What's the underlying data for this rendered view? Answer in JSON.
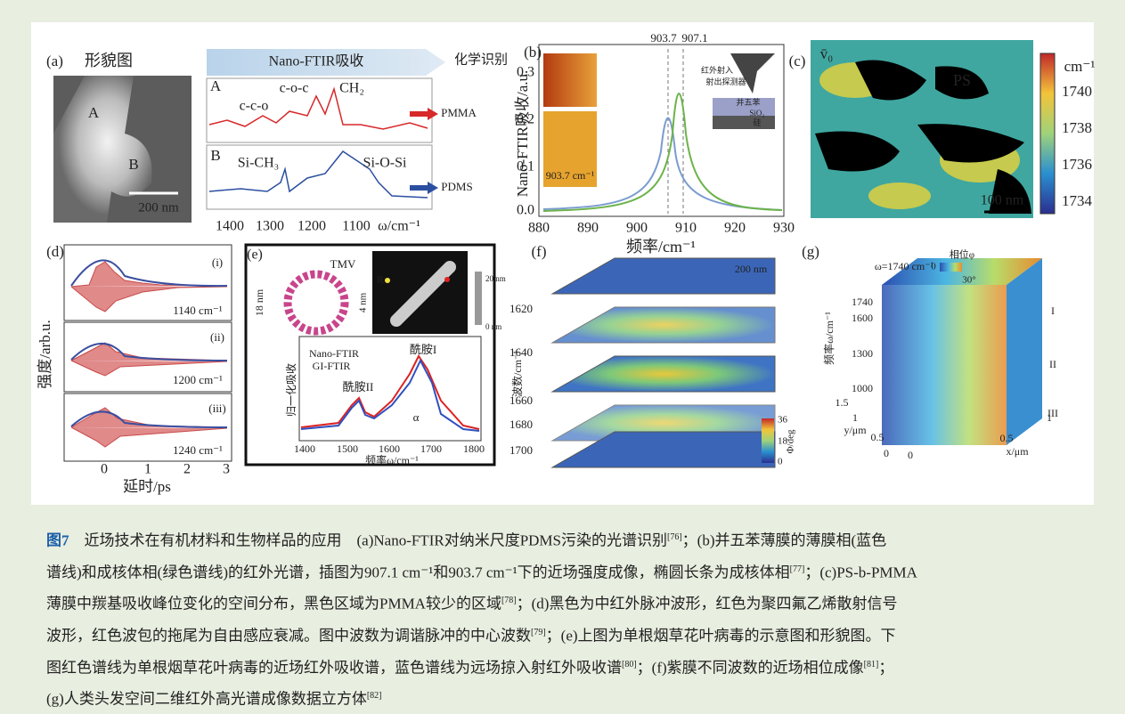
{
  "figure": {
    "a": {
      "label": "(a)",
      "title": "形貌图",
      "banner": "Nano-FTIR吸收",
      "banner_end": "化学识别",
      "afm_A": "A",
      "afm_B": "B",
      "scale": "200 nm",
      "spec_A": {
        "letter": "A",
        "peaks": [
          "c-c-o",
          "c-o-c",
          "CH₂"
        ],
        "tag": "PMMA"
      },
      "spec_B": {
        "letter": "B",
        "peaks": [
          "Si-CH₃",
          "Si-O-Si"
        ],
        "tag": "PDMS"
      },
      "xticks": [
        "1400",
        "1300",
        "1200",
        "1100"
      ],
      "xlabel": "ω/cm⁻¹"
    },
    "b": {
      "label": "(b)",
      "ylabel": "Nano-FTIR吸收/a.u.",
      "yticks": [
        "0.3",
        "0.2",
        "0.1",
        "0.0"
      ],
      "xticks": [
        "880",
        "890",
        "900",
        "910",
        "920",
        "930"
      ],
      "xlabel": "频率/cm⁻¹",
      "markers": [
        "903.7",
        "907.1"
      ],
      "inset": "903.7 cm⁻¹",
      "diagram": [
        "红外射入",
        "射出探测器",
        "并五苯",
        "SiO₂",
        "硅"
      ]
    },
    "c": {
      "label": "(c)",
      "symbol": "v̄₀",
      "region": "PS",
      "scale": "100 nm",
      "unit": "cm⁻¹",
      "ticks": [
        "1740",
        "1738",
        "1736",
        "1734"
      ]
    },
    "d": {
      "label": "(d)",
      "ylabel": "强度/arb.u.",
      "panels": [
        {
          "index": "(i)",
          "wavenumber": "1140 cm⁻¹"
        },
        {
          "index": "(ii)",
          "wavenumber": "1200 cm⁻¹"
        },
        {
          "index": "(iii)",
          "wavenumber": "1240 cm⁻¹"
        }
      ],
      "xticks": [
        "0",
        "1",
        "2",
        "3"
      ],
      "xlabel": "延时/ps"
    },
    "e": {
      "label": "(e)",
      "virus": "TMV",
      "diameter": "18 nm",
      "inner": "4 nm",
      "point": "R",
      "height_max": "20 nm",
      "height_min": "0 nm",
      "legend": [
        "Nano-FTIR",
        "GI-FTIR"
      ],
      "peaks": [
        "酰胺I",
        "酰胺II",
        "α"
      ],
      "ylabel": "归一化吸收",
      "xticks": [
        "1400",
        "1500",
        "1600",
        "1700",
        "1800"
      ],
      "xlabel": "频率ω/cm⁻¹"
    },
    "f": {
      "label": "(f)",
      "scale": "200 nm",
      "yticks": [
        "1620",
        "1640",
        "1660",
        "1680",
        "1700"
      ],
      "ylabel": "波数/cm⁻¹",
      "cbar_ticks": [
        "36",
        "18",
        "0"
      ],
      "cbar_label": "Φ/deg"
    },
    "g": {
      "label": "(g)",
      "slice": "ω=1740 cm⁻¹",
      "legend_title": "相位φ",
      "legend_min": "0",
      "legend_max": "30°",
      "zticks": [
        "1740",
        "1600",
        "1300",
        "1000"
      ],
      "zlabel": "频率ω/cm⁻¹",
      "bands": [
        "I",
        "II",
        "III"
      ],
      "yticks": [
        "1.5",
        "1",
        "0.5",
        "0"
      ],
      "ylabel": "y/μm",
      "xticks": [
        "0",
        "0.5",
        "1"
      ],
      "xlabel": "x/μm"
    }
  },
  "caption": {
    "number": "图7",
    "lines": [
      [
        {
          "text": "　近场技术在有机材料和生物样品的应用　(a)Nano-FTIR对纳米尺度PDMS污染的光谱识别"
        },
        {
          "sup": "[76]"
        },
        {
          "text": "；(b)并五苯薄膜的薄膜相(蓝色"
        }
      ],
      [
        {
          "text": "谱线)和成核体相(绿色谱线)的红外光谱，插图为907.1 cm⁻¹和903.7 cm⁻¹下的近场强度成像，椭圆长条为成核体相"
        },
        {
          "sup": "[77]"
        },
        {
          "text": "；(c)PS-b-PMMA"
        }
      ],
      [
        {
          "text": "薄膜中羰基吸收峰位变化的空间分布，黑色区域为PMMA较少的区域"
        },
        {
          "sup": "[78]"
        },
        {
          "text": "；(d)黑色为中红外脉冲波形，红色为聚四氟乙烯散射信号"
        }
      ],
      [
        {
          "text": "波形，红色波包的拖尾为自由感应衰减。图中波数为调谐脉冲的中心波数"
        },
        {
          "sup": "[79]"
        },
        {
          "text": "；(e)上图为单根烟草花叶病毒的示意图和形貌图。下"
        }
      ],
      [
        {
          "text": "图红色谱线为单根烟草花叶病毒的近场红外吸收谱，蓝色谱线为远场掠入射红外吸收谱"
        },
        {
          "sup": "[80]"
        },
        {
          "text": "；(f)紫膜不同波数的近场相位成像"
        },
        {
          "sup": "[81]"
        },
        {
          "text": "；"
        }
      ],
      [
        {
          "text": "(g)人类头发空间二维红外高光谱成像数据立方体"
        },
        {
          "sup": "[82]"
        }
      ]
    ]
  }
}
